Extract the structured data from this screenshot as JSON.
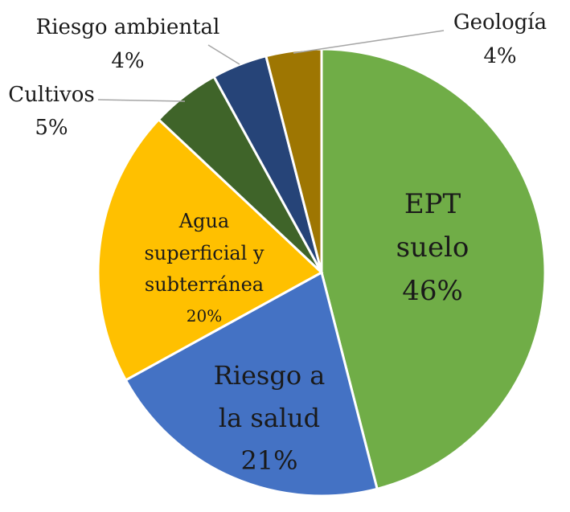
{
  "chart_data": {
    "type": "pie",
    "title": "",
    "colors": {
      "EPT suelo": "#70ad47",
      "Riesgo a la salud": "#4472c4",
      "Agua superficial y subterránea": "#ffc000",
      "Cultivos": "#3f6429",
      "Riesgo ambiental": "#264478",
      "Geología": "#9e7602"
    },
    "slices": [
      {
        "key": "ept",
        "name": "EPT suelo",
        "label_lines": [
          "EPT",
          "suelo"
        ],
        "value": 46,
        "value_label": "46%",
        "label_position": "inside",
        "color": "#70ad47"
      },
      {
        "key": "salud",
        "name": "Riesgo a la salud",
        "label_lines": [
          "Riesgo a",
          "la salud"
        ],
        "value": 21,
        "value_label": "21%",
        "label_position": "inside",
        "color": "#4472c4"
      },
      {
        "key": "agua",
        "name": "Agua superficial y subterránea",
        "label_lines": [
          "Agua",
          "superficial y",
          "subterránea"
        ],
        "value": 20,
        "value_label": "20%",
        "label_position": "inside",
        "color": "#ffc000"
      },
      {
        "key": "cultivos",
        "name": "Cultivos",
        "label_lines": [
          "Cultivos"
        ],
        "value": 5,
        "value_label": "5%",
        "label_position": "outside",
        "color": "#3f6429"
      },
      {
        "key": "ambiental",
        "name": "Riesgo ambiental",
        "label_lines": [
          "Riesgo ambiental"
        ],
        "value": 4,
        "value_label": "4%",
        "label_position": "outside",
        "color": "#264478"
      },
      {
        "key": "geologia",
        "name": "Geología",
        "label_lines": [
          "Geología"
        ],
        "value": 4,
        "value_label": "4%",
        "label_position": "outside",
        "color": "#9e7602"
      }
    ]
  }
}
